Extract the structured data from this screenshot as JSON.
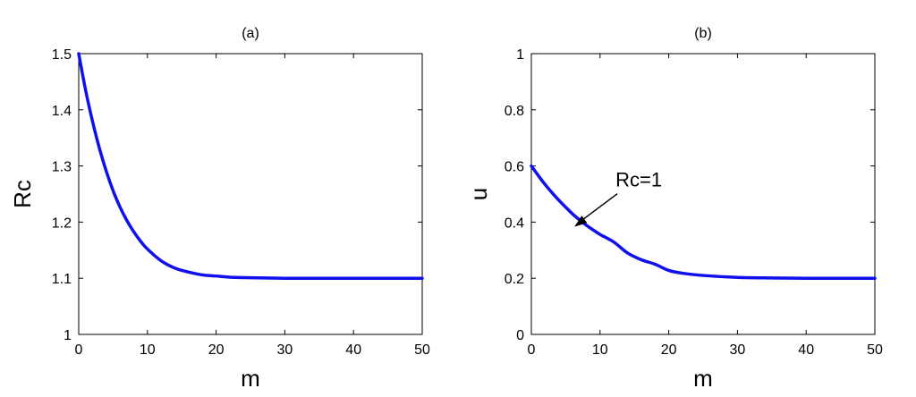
{
  "chart_data": [
    {
      "type": "line",
      "title": "(a)",
      "xlabel": "m",
      "ylabel": "Rc",
      "xlim": [
        0,
        50
      ],
      "ylim": [
        1,
        1.5
      ],
      "xticks": [
        "0",
        "10",
        "20",
        "30",
        "40",
        "50"
      ],
      "yticks": [
        "1",
        "1.1",
        "1.2",
        "1.3",
        "1.4",
        "1.5"
      ],
      "grid": false,
      "line_color": "#1010ee",
      "x": [
        0,
        1,
        2,
        3,
        4,
        5,
        6,
        7,
        8,
        9,
        10,
        12,
        14,
        16,
        18,
        20,
        22,
        25,
        30,
        35,
        40,
        45,
        50
      ],
      "values": [
        1.5,
        1.435,
        1.38,
        1.332,
        1.291,
        1.256,
        1.227,
        1.203,
        1.183,
        1.166,
        1.152,
        1.131,
        1.118,
        1.111,
        1.106,
        1.104,
        1.102,
        1.101,
        1.1,
        1.1,
        1.1,
        1.1,
        1.1
      ]
    },
    {
      "type": "line",
      "title": "(b)",
      "xlabel": "m",
      "ylabel": "u",
      "xlim": [
        0,
        50
      ],
      "ylim": [
        0,
        1
      ],
      "xticks": [
        "0",
        "10",
        "20",
        "30",
        "40",
        "50"
      ],
      "yticks": [
        "0",
        "0.2",
        "0.4",
        "0.6",
        "0.8",
        "1"
      ],
      "grid": false,
      "line_color": "#1010ee",
      "x": [
        0,
        1,
        2,
        3,
        4,
        5,
        6,
        7,
        8,
        9,
        10,
        12,
        14,
        16,
        18,
        20,
        22,
        25,
        30,
        35,
        40,
        45,
        50
      ],
      "values": [
        0.6,
        0.566,
        0.534,
        0.505,
        0.478,
        0.453,
        0.429,
        0.408,
        0.389,
        0.372,
        0.356,
        0.329,
        0.29,
        0.266,
        0.25,
        0.228,
        0.218,
        0.21,
        0.203,
        0.201,
        0.2,
        0.2,
        0.2
      ],
      "annotation": {
        "text": "Rc=1",
        "x": 6,
        "y": 0.38
      }
    }
  ]
}
